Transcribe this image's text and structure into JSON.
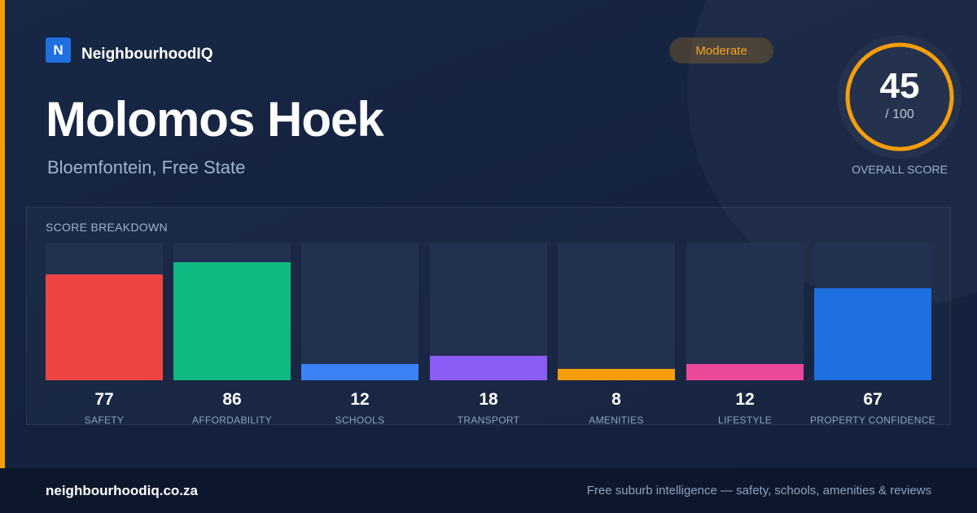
{
  "brand": {
    "logo_letter": "N",
    "name": "NeighbourhoodIQ"
  },
  "badge": {
    "label": "Moderate",
    "color": "#f5a524"
  },
  "suburb": {
    "name": "Molomos Hoek",
    "location": "Bloemfontein, Free State"
  },
  "overall": {
    "score": 45,
    "value": "45",
    "max_label": "/ 100",
    "label": "OVERALL SCORE",
    "ring_color": "#f59e0b"
  },
  "breakdown": {
    "title": "SCORE BREAKDOWN",
    "metrics": [
      {
        "label": "SAFETY",
        "value": "77",
        "score": 77,
        "color": "#ef4444"
      },
      {
        "label": "AFFORDABILITY",
        "value": "86",
        "score": 86,
        "color": "#10b981"
      },
      {
        "label": "SCHOOLS",
        "value": "12",
        "score": 12,
        "color": "#3b82f6"
      },
      {
        "label": "TRANSPORT",
        "value": "18",
        "score": 18,
        "color": "#8b5cf6"
      },
      {
        "label": "AMENITIES",
        "value": "8",
        "score": 8,
        "color": "#f59e0b"
      },
      {
        "label": "LIFESTYLE",
        "value": "12",
        "score": 12,
        "color": "#ec4899"
      },
      {
        "label": "PROPERTY CONFIDENCE",
        "value": "67",
        "score": 67,
        "color": "#1f6fe0"
      }
    ]
  },
  "footer": {
    "domain": "neighbourhoodiq.co.za",
    "tagline": "Free suburb intelligence — safety, schools, amenities & reviews"
  }
}
